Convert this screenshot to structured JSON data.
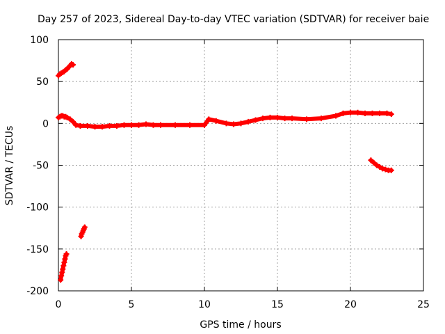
{
  "chart_data": {
    "type": "scatter",
    "title": "Day 257 of 2023, Sidereal Day-to-day VTEC variation (SDTVAR) for receiver baie",
    "xlabel": "GPS time / hours",
    "ylabel": "SDTVAR / TECUs",
    "xlim": [
      0,
      25
    ],
    "ylim": [
      -200,
      100
    ],
    "xticks": [
      0,
      5,
      10,
      15,
      20,
      25
    ],
    "yticks": [
      -200,
      -150,
      -100,
      -50,
      0,
      50,
      100
    ],
    "grid": true,
    "marker_color": "#ff0000",
    "series": [
      {
        "name": "trace-main",
        "x": [
          0.0,
          0.1,
          0.2,
          0.3,
          0.4,
          0.5,
          0.6,
          0.8,
          1.0,
          1.2,
          1.5,
          2.0,
          2.5,
          3.0,
          3.5,
          4.0,
          4.5,
          5.0,
          5.5,
          6.0,
          6.5,
          7.0,
          8.0,
          9.0,
          10.0,
          10.3,
          10.8,
          11.5,
          12.0,
          12.5,
          13.0,
          13.5,
          14.0,
          14.5,
          15.0,
          15.5,
          16.0,
          17.0,
          18.0,
          19.0,
          19.5,
          20.0,
          20.5,
          21.0,
          21.5,
          22.0,
          22.5,
          22.8
        ],
        "y": [
          7,
          8,
          9,
          9,
          8,
          8,
          7,
          5,
          2,
          -2,
          -3,
          -3,
          -4,
          -4,
          -3,
          -3,
          -2,
          -2,
          -2,
          -1,
          -2,
          -2,
          -2,
          -2,
          -2,
          5,
          3,
          0,
          -1,
          0,
          2,
          4,
          6,
          7,
          7,
          6,
          6,
          5,
          6,
          9,
          12,
          13,
          13,
          12,
          12,
          12,
          12,
          11
        ]
      },
      {
        "name": "trace-start-positive",
        "x": [
          0.0,
          0.1,
          0.2,
          0.3,
          0.4,
          0.5,
          0.6,
          0.7,
          0.8,
          0.9,
          1.0
        ],
        "y": [
          57,
          59,
          60,
          61,
          62,
          64,
          65,
          67,
          69,
          71,
          70
        ]
      },
      {
        "name": "trace-start-negative",
        "x": [
          0.15,
          0.2,
          0.25,
          0.3,
          0.35,
          0.4,
          0.45,
          0.5,
          0.55
        ],
        "y": [
          -187,
          -182,
          -178,
          -174,
          -170,
          -166,
          -162,
          -158,
          -156
        ]
      },
      {
        "name": "trace-near-2h",
        "x": [
          1.55,
          1.6,
          1.65,
          1.7,
          1.75,
          1.8
        ],
        "y": [
          -135,
          -132,
          -130,
          -128,
          -126,
          -124
        ]
      },
      {
        "name": "trace-end-negative",
        "x": [
          21.4,
          21.6,
          21.8,
          22.0,
          22.2,
          22.4,
          22.6,
          22.8
        ],
        "y": [
          -44,
          -47,
          -50,
          -52,
          -54,
          -55,
          -56,
          -56
        ]
      }
    ]
  }
}
